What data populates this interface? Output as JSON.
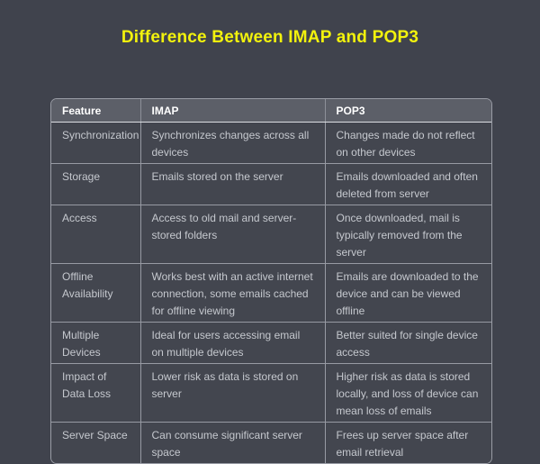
{
  "page": {
    "title": "Difference Between IMAP and POP3",
    "colors": {
      "background": "#40434d",
      "title_text": "#f2f20d",
      "header_background": "#5c5f68",
      "header_text": "#ffffff",
      "cell_background": "#43464f",
      "cell_text": "#c5c8ce",
      "border": "#979aa3"
    }
  },
  "table": {
    "headers": [
      "Feature",
      "IMAP",
      "POP3"
    ],
    "rows": [
      {
        "feature": "Synchronization",
        "imap": "Synchronizes changes across all devices",
        "pop3": "Changes made do not reflect on other devices"
      },
      {
        "feature": "Storage",
        "imap": "Emails stored on the server",
        "pop3": "Emails downloaded and often deleted from server"
      },
      {
        "feature": "Access",
        "imap": "Access to old mail and server-stored folders",
        "pop3": "Once downloaded, mail is typically removed from the server"
      },
      {
        "feature": "Offline Availability",
        "imap": "Works best with an active internet connection, some emails cached for offline viewing",
        "pop3": "Emails are downloaded to the device and can be viewed offline"
      },
      {
        "feature": "Multiple Devices",
        "imap": "Ideal for users accessing email on multiple devices",
        "pop3": "Better suited for single device access"
      },
      {
        "feature": "Impact of Data Loss",
        "imap": "Lower risk as data is stored on server",
        "pop3": "Higher risk as data is stored locally, and loss of device can mean loss of emails"
      },
      {
        "feature": "Server Space",
        "imap": "Can consume significant server space",
        "pop3": "Frees up server space after email retrieval"
      }
    ]
  }
}
